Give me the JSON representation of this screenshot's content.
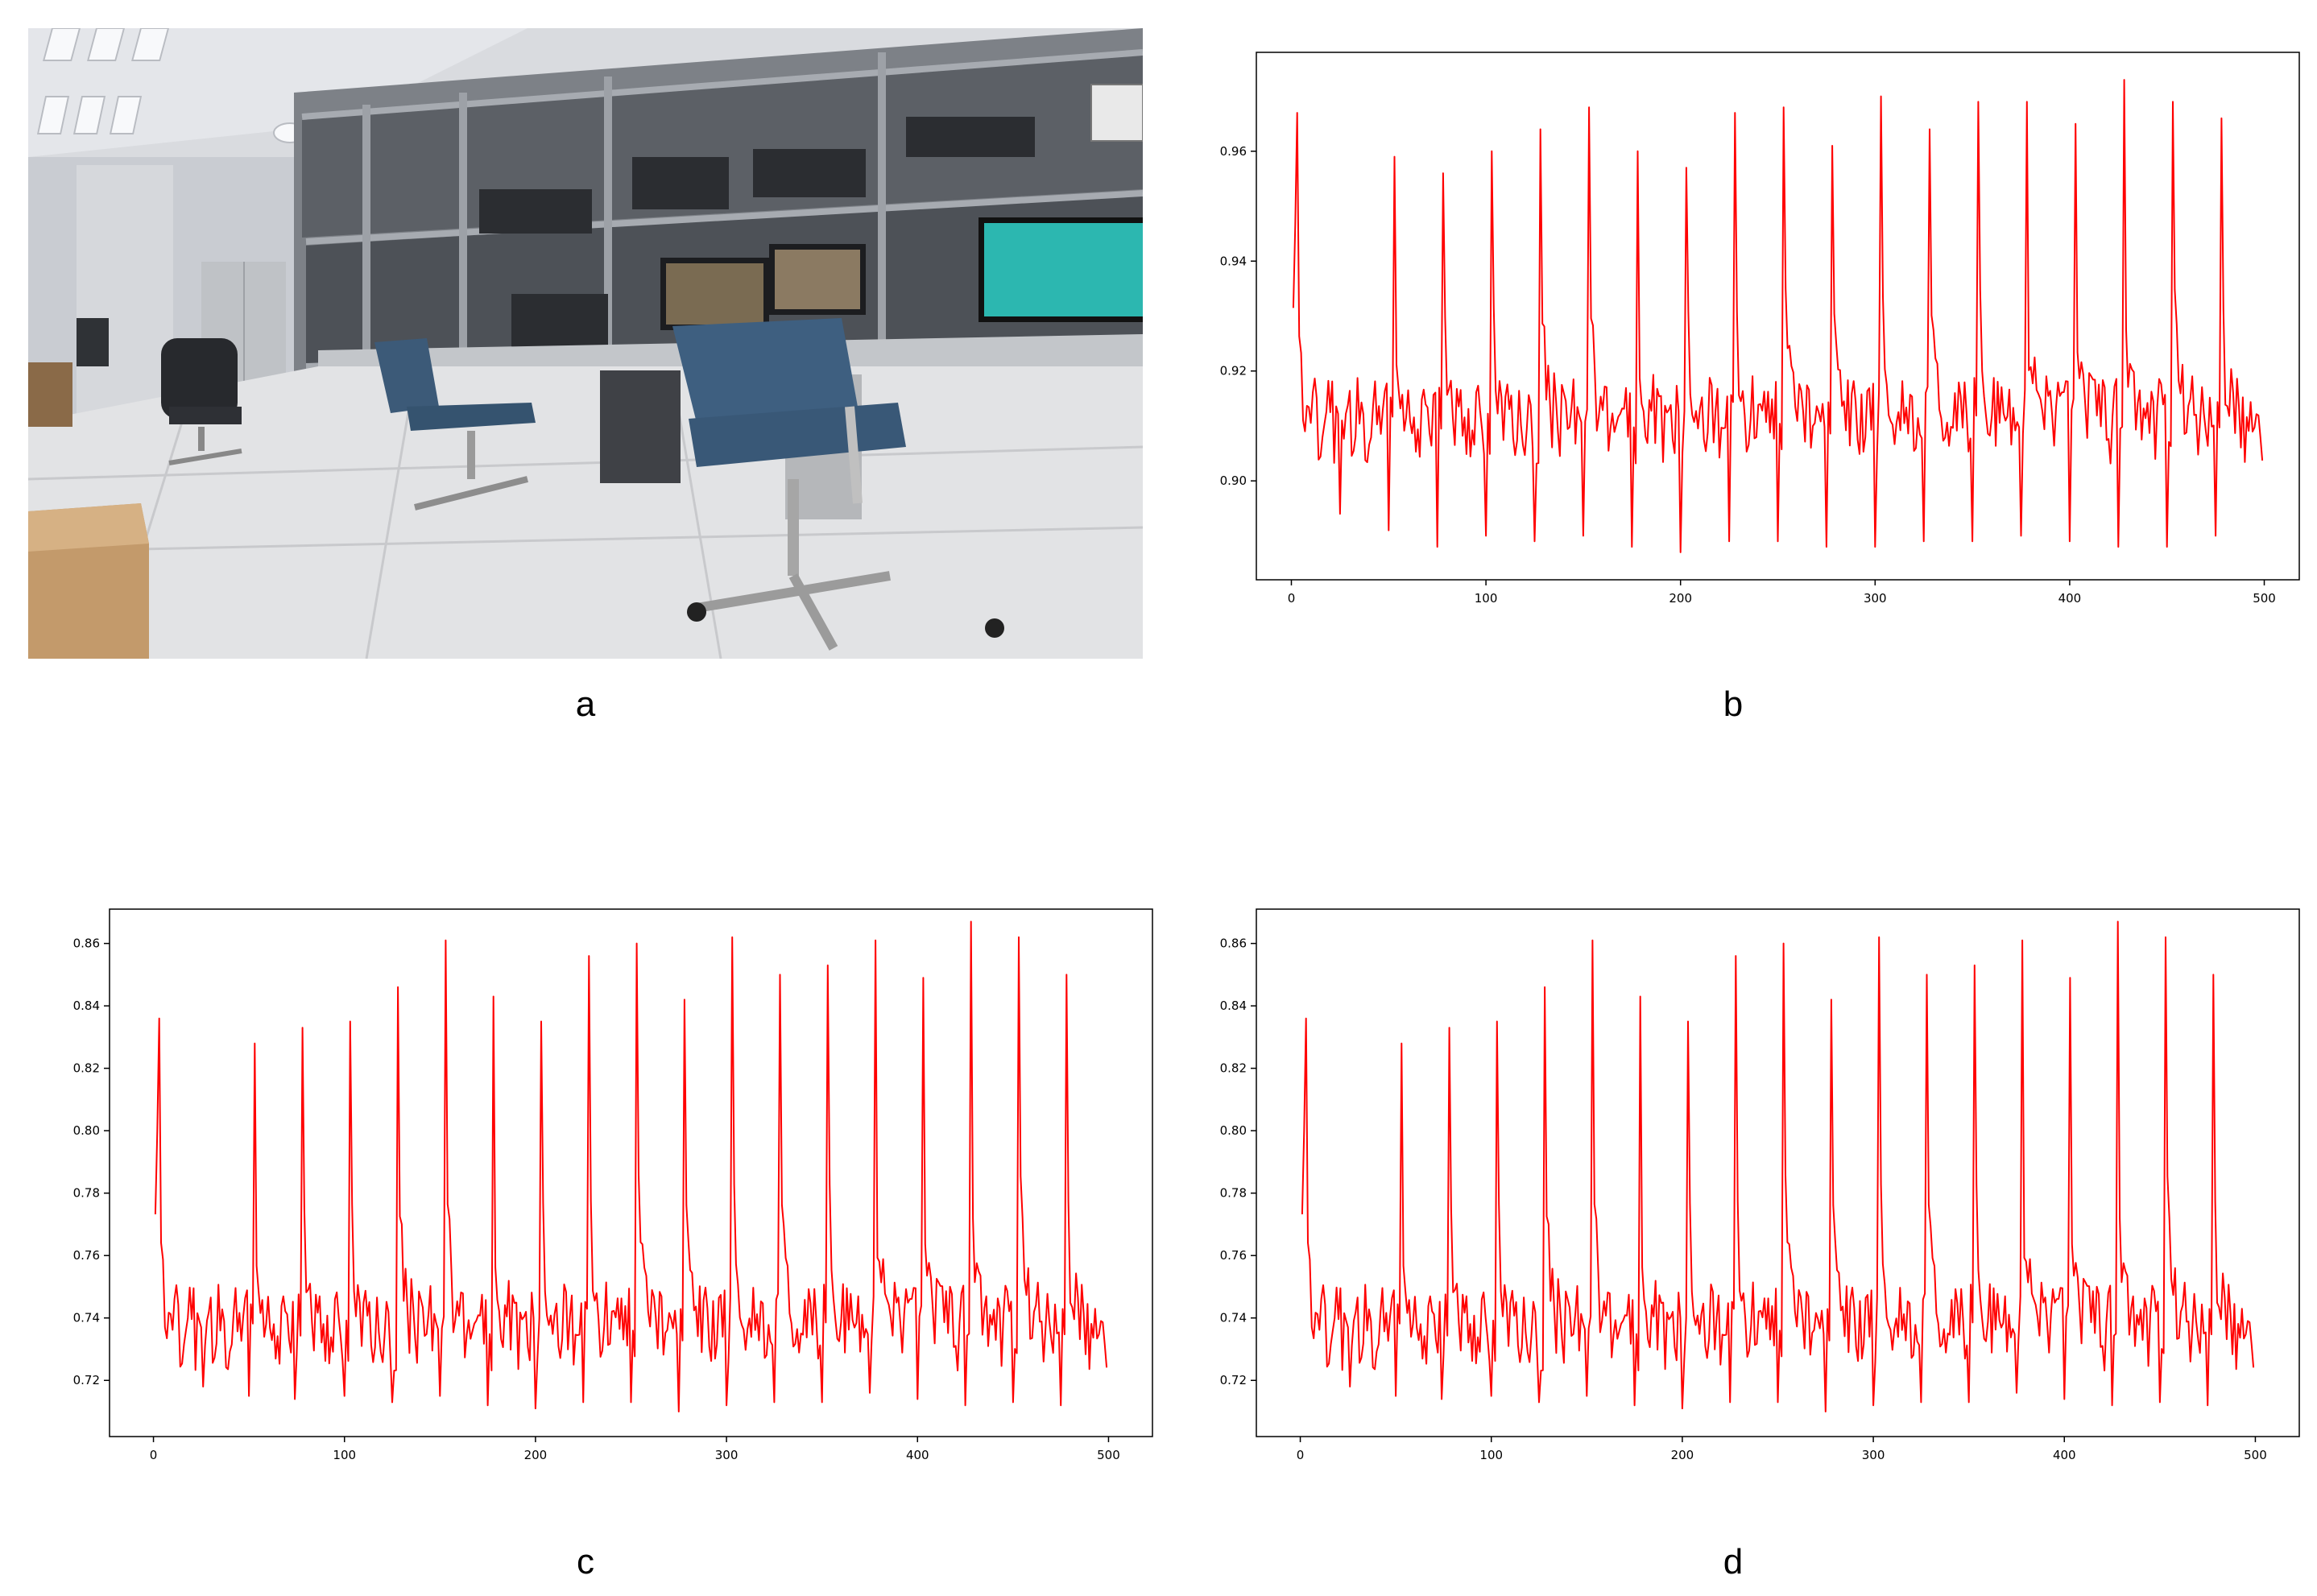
{
  "panels": {
    "a": {
      "label": "a"
    },
    "b": {
      "label": "b"
    },
    "c": {
      "label": "c"
    },
    "d": {
      "label": "d"
    }
  },
  "colors": {
    "line": "#ff0000",
    "axes": "#000000",
    "background": "#ffffff"
  },
  "icons": {
    "photo": "office-lab-photo"
  },
  "chart_data": [
    {
      "panel": "b",
      "type": "line",
      "title": "",
      "xlabel": "",
      "ylabel": "",
      "xlim": [
        -18,
        518
      ],
      "ylim": [
        0.882,
        0.978
      ],
      "xticks": [
        0,
        100,
        200,
        300,
        400,
        500
      ],
      "yticks": [
        0.9,
        0.92,
        0.94,
        0.96
      ],
      "ytick_labels": [
        "0.90",
        "0.92",
        "0.94",
        "0.96"
      ],
      "grid": false,
      "legend": "none",
      "series": [
        {
          "color": "#ff0000",
          "period": 25,
          "peaks": [
            [
              3,
              0.967
            ],
            [
              53,
              0.959
            ],
            [
              78,
              0.956
            ],
            [
              103,
              0.96
            ],
            [
              128,
              0.964
            ],
            [
              153,
              0.968
            ],
            [
              178,
              0.96
            ],
            [
              203,
              0.957
            ],
            [
              228,
              0.967
            ],
            [
              253,
              0.968
            ],
            [
              278,
              0.961
            ],
            [
              303,
              0.97
            ],
            [
              328,
              0.964
            ],
            [
              353,
              0.969
            ],
            [
              378,
              0.969
            ],
            [
              403,
              0.965
            ],
            [
              428,
              0.973
            ],
            [
              453,
              0.969
            ],
            [
              478,
              0.966
            ]
          ],
          "troughs": [
            [
              25,
              0.894
            ],
            [
              50,
              0.891
            ],
            [
              75,
              0.888
            ],
            [
              100,
              0.89
            ],
            [
              125,
              0.889
            ],
            [
              150,
              0.89
            ],
            [
              175,
              0.888
            ],
            [
              200,
              0.887
            ],
            [
              225,
              0.889
            ],
            [
              250,
              0.889
            ],
            [
              275,
              0.888
            ],
            [
              300,
              0.888
            ],
            [
              325,
              0.889
            ],
            [
              350,
              0.889
            ],
            [
              375,
              0.89
            ],
            [
              400,
              0.889
            ],
            [
              425,
              0.888
            ],
            [
              450,
              0.888
            ],
            [
              475,
              0.89
            ]
          ],
          "baseline": 0.911,
          "x_range": [
            1,
            499
          ]
        }
      ]
    },
    {
      "panel": "c",
      "type": "line",
      "title": "",
      "xlabel": "",
      "ylabel": "",
      "xlim": [
        -23,
        523
      ],
      "ylim": [
        0.702,
        0.871
      ],
      "xticks": [
        0,
        100,
        200,
        300,
        400,
        500
      ],
      "yticks": [
        0.72,
        0.74,
        0.76,
        0.78,
        0.8,
        0.82,
        0.84,
        0.86
      ],
      "ytick_labels": [
        "0.72",
        "0.74",
        "0.76",
        "0.78",
        "0.80",
        "0.82",
        "0.84",
        "0.86"
      ],
      "grid": false,
      "legend": "none",
      "series": [
        {
          "color": "#ff0000",
          "period": 25,
          "peaks": [
            [
              3,
              0.836
            ],
            [
              53,
              0.828
            ],
            [
              78,
              0.833
            ],
            [
              103,
              0.835
            ],
            [
              128,
              0.846
            ],
            [
              153,
              0.861
            ],
            [
              178,
              0.843
            ],
            [
              203,
              0.835
            ],
            [
              228,
              0.856
            ],
            [
              253,
              0.86
            ],
            [
              278,
              0.842
            ],
            [
              303,
              0.862
            ],
            [
              328,
              0.85
            ],
            [
              353,
              0.853
            ],
            [
              378,
              0.861
            ],
            [
              403,
              0.849
            ],
            [
              428,
              0.867
            ],
            [
              453,
              0.862
            ],
            [
              478,
              0.85
            ]
          ],
          "troughs": [
            [
              26,
              0.718
            ],
            [
              50,
              0.715
            ],
            [
              74,
              0.714
            ],
            [
              100,
              0.715
            ],
            [
              125,
              0.713
            ],
            [
              150,
              0.715
            ],
            [
              175,
              0.712
            ],
            [
              200,
              0.711
            ],
            [
              225,
              0.713
            ],
            [
              250,
              0.713
            ],
            [
              275,
              0.71
            ],
            [
              300,
              0.712
            ],
            [
              325,
              0.713
            ],
            [
              350,
              0.713
            ],
            [
              375,
              0.716
            ],
            [
              400,
              0.714
            ],
            [
              425,
              0.712
            ],
            [
              450,
              0.713
            ],
            [
              475,
              0.712
            ]
          ],
          "baseline": 0.737,
          "x_range": [
            1,
            499
          ]
        }
      ]
    },
    {
      "panel": "d",
      "type": "line",
      "title": "",
      "xlabel": "",
      "ylabel": "",
      "xlim": [
        -23,
        523
      ],
      "ylim": [
        0.702,
        0.871
      ],
      "xticks": [
        0,
        100,
        200,
        300,
        400,
        500
      ],
      "yticks": [
        0.72,
        0.74,
        0.76,
        0.78,
        0.8,
        0.82,
        0.84,
        0.86
      ],
      "ytick_labels": [
        "0.72",
        "0.74",
        "0.76",
        "0.78",
        "0.80",
        "0.82",
        "0.84",
        "0.86"
      ],
      "grid": false,
      "legend": "none",
      "series": [
        {
          "color": "#ff0000",
          "period": 25,
          "peaks": [
            [
              3,
              0.836
            ],
            [
              53,
              0.828
            ],
            [
              78,
              0.833
            ],
            [
              103,
              0.835
            ],
            [
              128,
              0.846
            ],
            [
              153,
              0.861
            ],
            [
              178,
              0.843
            ],
            [
              203,
              0.835
            ],
            [
              228,
              0.856
            ],
            [
              253,
              0.86
            ],
            [
              278,
              0.842
            ],
            [
              303,
              0.862
            ],
            [
              328,
              0.85
            ],
            [
              353,
              0.853
            ],
            [
              378,
              0.861
            ],
            [
              403,
              0.849
            ],
            [
              428,
              0.867
            ],
            [
              453,
              0.862
            ],
            [
              478,
              0.85
            ]
          ],
          "troughs": [
            [
              26,
              0.718
            ],
            [
              50,
              0.715
            ],
            [
              74,
              0.714
            ],
            [
              100,
              0.715
            ],
            [
              125,
              0.713
            ],
            [
              150,
              0.715
            ],
            [
              175,
              0.712
            ],
            [
              200,
              0.711
            ],
            [
              225,
              0.713
            ],
            [
              250,
              0.713
            ],
            [
              275,
              0.71
            ],
            [
              300,
              0.712
            ],
            [
              325,
              0.713
            ],
            [
              350,
              0.713
            ],
            [
              375,
              0.716
            ],
            [
              400,
              0.714
            ],
            [
              425,
              0.712
            ],
            [
              450,
              0.713
            ],
            [
              475,
              0.712
            ]
          ],
          "baseline": 0.737,
          "x_range": [
            1,
            499
          ]
        }
      ]
    }
  ]
}
